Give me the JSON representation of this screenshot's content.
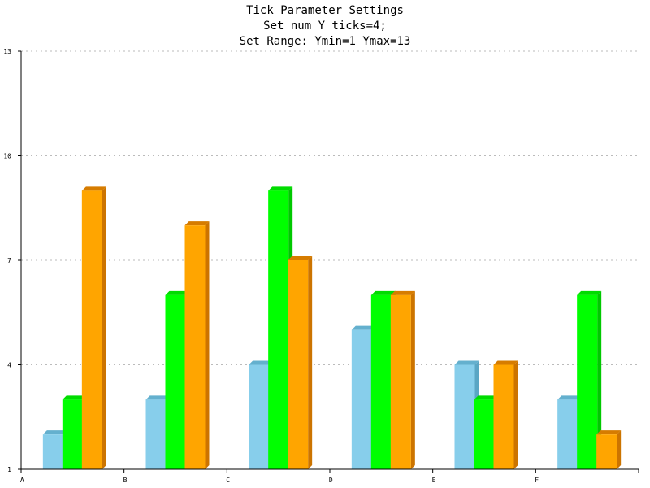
{
  "chart_data": {
    "type": "bar",
    "title": "Tick Parameter Settings",
    "subtitle": [
      "Set num Y ticks=4;",
      "Set Range: Ymin=1 Ymax=13"
    ],
    "categories": [
      "A",
      "B",
      "C",
      "D",
      "E",
      "F"
    ],
    "series": [
      {
        "values": [
          2,
          3,
          4,
          5,
          4,
          3
        ]
      },
      {
        "values": [
          3,
          6,
          9,
          6,
          3,
          6
        ]
      },
      {
        "values": [
          9,
          8,
          7,
          6,
          4,
          2
        ]
      }
    ],
    "ylim": [
      1,
      13
    ],
    "yticks": [
      1,
      4,
      7,
      10,
      13
    ],
    "grid": true,
    "colors": {
      "series_fill": [
        "#87CEEB",
        "#00FF00",
        "#FFA500"
      ],
      "series_side": [
        "#5AA6C4",
        "#00C800",
        "#CC7400"
      ],
      "series_top": [
        "#64B0CE",
        "#00DC00",
        "#D67C00"
      ],
      "grid": "#BBBBBB",
      "axis": "#000000",
      "text": "#000000"
    }
  }
}
